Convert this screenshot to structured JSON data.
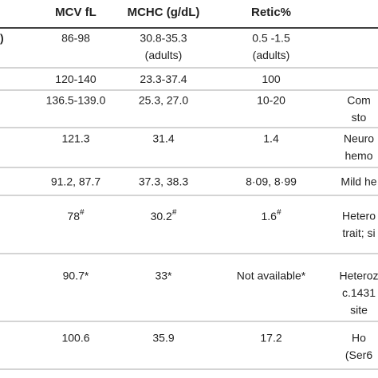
{
  "table": {
    "header": [
      "MCV fL",
      "MCHC (g/dL)",
      "Retic%"
    ],
    "rows": [
      {
        "side": ")",
        "cells": [
          [
            "86-98"
          ],
          [
            "30.8-35.3",
            "(adults)"
          ],
          [
            "0.5 -1.5",
            "(adults)"
          ],
          []
        ]
      },
      {
        "cells": [
          [
            "120-140"
          ],
          [
            "23.3-37.4"
          ],
          [
            "100"
          ],
          []
        ]
      },
      {
        "cells": [
          [
            "136.5-139.0"
          ],
          [
            "25.3, 27.0"
          ],
          [
            "10-20"
          ],
          [
            "Com",
            "sto"
          ]
        ]
      },
      {
        "cells": [
          [
            "121.3"
          ],
          [
            "31.4"
          ],
          [
            "1.4"
          ],
          [
            "Neuro",
            "hemo"
          ]
        ]
      },
      {
        "cells": [
          [
            "91.2, 87.7"
          ],
          [
            "37.3, 38.3"
          ],
          [
            "8·09, 8·99"
          ],
          [
            "Mild he"
          ]
        ]
      },
      {
        "cells": [
          [
            {
              "text": "78",
              "sup": "#"
            }
          ],
          [
            {
              "text": "30.2",
              "sup": "#"
            }
          ],
          [
            {
              "text": "1.6",
              "sup": "#"
            }
          ],
          [
            "Hetero",
            "trait; si"
          ]
        ]
      },
      {
        "cells": [
          [
            "90.7*"
          ],
          [
            "33*"
          ],
          [
            "Not available*"
          ],
          [
            "Heteroz",
            "c.1431",
            "site"
          ]
        ]
      },
      {
        "cells": [
          [
            "100.6"
          ],
          [
            "35.9"
          ],
          [
            "17.2"
          ],
          [
            "Ho",
            "(Ser6"
          ]
        ]
      }
    ]
  }
}
